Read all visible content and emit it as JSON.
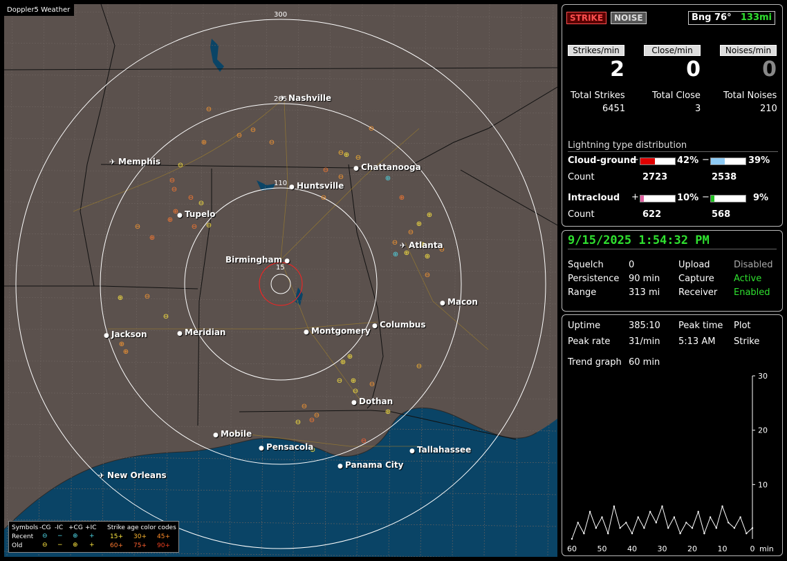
{
  "window_title": "Doppler5 Weather",
  "map": {
    "ring_labels": [
      "300",
      "205",
      "110",
      "15"
    ],
    "cities": [
      {
        "name": "Nashville",
        "airport": true
      },
      {
        "name": "Memphis",
        "airport": true
      },
      {
        "name": "Chattanooga",
        "airport": false
      },
      {
        "name": "Huntsville",
        "airport": false
      },
      {
        "name": "Tupelo",
        "airport": false
      },
      {
        "name": "Birmingham",
        "airport": false
      },
      {
        "name": "Atlanta",
        "airport": true
      },
      {
        "name": "Macon",
        "airport": false
      },
      {
        "name": "Jackson",
        "airport": false
      },
      {
        "name": "Meridian",
        "airport": false
      },
      {
        "name": "Montgomery",
        "airport": false
      },
      {
        "name": "Columbus",
        "airport": false
      },
      {
        "name": "Dothan",
        "airport": false
      },
      {
        "name": "Mobile",
        "airport": false
      },
      {
        "name": "Pensacola",
        "airport": false
      },
      {
        "name": "Tallahassee",
        "airport": false
      },
      {
        "name": "Panama City",
        "airport": false
      },
      {
        "name": "New Orleans",
        "airport": true
      }
    ],
    "legend": {
      "symbols_label": "Symbols",
      "headers": [
        "-CG",
        "-IC",
        "+CG",
        "+IC"
      ],
      "age_title": "Strike age color codes",
      "recent_label": "Recent",
      "old_label": "Old",
      "recent_ages": [
        "15+",
        "30+",
        "45+"
      ],
      "old_ages": [
        "60+",
        "75+",
        "90+"
      ]
    }
  },
  "status": {
    "strike_label": "STRIKE",
    "noise_label": "NOISE",
    "bearing": "Bng 76°",
    "distance": "133mi",
    "strikes_min_label": "Strikes/min",
    "close_min_label": "Close/min",
    "noises_min_label": "Noises/min",
    "strikes_min": "2",
    "close_min": "0",
    "noises_min": "0",
    "total_strikes_label": "Total Strikes",
    "total_close_label": "Total Close",
    "total_noises_label": "Total Noises",
    "total_strikes": "6451",
    "total_close": "3",
    "total_noises": "210"
  },
  "distribution": {
    "title": "Lightning type distribution",
    "cloud_ground_label": "Cloud-ground",
    "intracloud_label": "Intracloud",
    "count_label": "Count",
    "plus": "+",
    "minus": "−",
    "cg_pos_pct": "42%",
    "cg_neg_pct": "39%",
    "ic_pos_pct": "10%",
    "ic_neg_pct": "9%",
    "cg_pos_count": "2723",
    "cg_neg_count": "2538",
    "ic_pos_count": "622",
    "ic_neg_count": "568",
    "fills": {
      "cg_pos": 0.42,
      "cg_neg": 0.39,
      "ic_pos": 0.1,
      "ic_neg": 0.09
    },
    "colors": {
      "cg_pos": "#e00000",
      "cg_neg": "#8ecbf5",
      "ic_pos": "#e060a0",
      "ic_neg": "#20c020"
    }
  },
  "settings": {
    "datetime": "9/15/2025 1:54:32 PM",
    "squelch_label": "Squelch",
    "squelch": "0",
    "persistence_label": "Persistence",
    "persistence": "90 min",
    "range_label": "Range",
    "range": "313 mi",
    "upload_label": "Upload",
    "upload": "Disabled",
    "capture_label": "Capture",
    "capture": "Active",
    "receiver_label": "Receiver",
    "receiver": "Enabled"
  },
  "stats": {
    "uptime_label": "Uptime",
    "uptime": "385:10",
    "peak_time_label": "Peak time",
    "peak_time": "5:13 AM",
    "plot_label": "Plot",
    "plot": "Strike",
    "peak_rate_label": "Peak rate",
    "peak_rate": "31/min",
    "trend_label": "Trend graph",
    "trend": "60 min"
  },
  "chart_data": {
    "type": "line",
    "x": [
      60,
      58,
      56,
      54,
      52,
      50,
      48,
      46,
      44,
      42,
      40,
      38,
      36,
      34,
      32,
      30,
      28,
      26,
      24,
      22,
      20,
      18,
      16,
      14,
      12,
      10,
      8,
      6,
      4,
      2,
      0
    ],
    "series": [
      {
        "values": [
          0,
          3,
          1,
          5,
          2,
          4,
          1,
          6,
          2,
          3,
          1,
          4,
          2,
          5,
          3,
          6,
          2,
          4,
          1,
          3,
          2,
          5,
          1,
          4,
          2,
          6,
          3,
          2,
          4,
          1,
          2
        ]
      }
    ],
    "x_ticks": [
      "60",
      "50",
      "40",
      "30",
      "20",
      "10",
      "0"
    ],
    "y_ticks": [
      "30",
      "20",
      "10"
    ],
    "x_unit": "min",
    "ylim": [
      0,
      30
    ],
    "xlim": [
      60,
      0
    ]
  }
}
